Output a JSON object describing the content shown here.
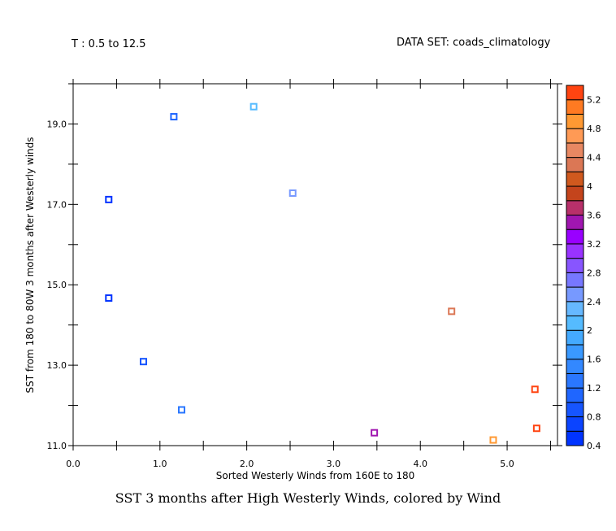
{
  "header": {
    "time_range": "T : 0.5 to 12.5",
    "dataset": "DATA SET: coads_climatology"
  },
  "chart_data": {
    "type": "scatter",
    "title": "SST 3 months after High Westerly Winds, colored by Wind",
    "xlabel": "Sorted Westerly Winds from 160E to 180",
    "ylabel": "SST from 180 to 80W 3 months after Westerly winds",
    "xlim": [
      0,
      5.58
    ],
    "ylim": [
      11,
      20
    ],
    "xticks": [
      "0.0",
      "1.0",
      "2.0",
      "3.0",
      "4.0",
      "5.0"
    ],
    "yticks": [
      "11.0",
      "13.0",
      "15.0",
      "17.0",
      "19.0"
    ],
    "grid": false,
    "points": [
      {
        "x": 0.41,
        "y": 17.12
      },
      {
        "x": 1.16,
        "y": 19.18
      },
      {
        "x": 2.08,
        "y": 19.43
      },
      {
        "x": 2.53,
        "y": 17.28
      },
      {
        "x": 0.41,
        "y": 14.67
      },
      {
        "x": 0.81,
        "y": 13.09
      },
      {
        "x": 1.25,
        "y": 11.89
      },
      {
        "x": 3.47,
        "y": 11.32
      },
      {
        "x": 4.36,
        "y": 14.34
      },
      {
        "x": 4.84,
        "y": 11.14
      },
      {
        "x": 5.32,
        "y": 12.4
      },
      {
        "x": 5.34,
        "y": 11.43
      }
    ],
    "colorbar": {
      "min": 0.4,
      "max": 5.4,
      "step": 0.2,
      "labels": [
        "0.4",
        "0.8",
        "1.2",
        "1.6",
        "2",
        "2.4",
        "2.8",
        "3.2",
        "3.6",
        "4",
        "4.4",
        "4.8",
        "5.2"
      ],
      "colors": [
        "#0033ff",
        "#0b44ff",
        "#1655ff",
        "#1f66ff",
        "#2a77ff",
        "#3388ff",
        "#3a99ff",
        "#44aaff",
        "#55bbff",
        "#66b8ff",
        "#7799ff",
        "#7777ff",
        "#8855ff",
        "#9933ff",
        "#9900ff",
        "#a016b0",
        "#b8306a",
        "#c4441c",
        "#d0591e",
        "#db7755",
        "#e88862",
        "#ff9a55",
        "#ff9933",
        "#ff7a22",
        "#ff4411"
      ]
    }
  }
}
